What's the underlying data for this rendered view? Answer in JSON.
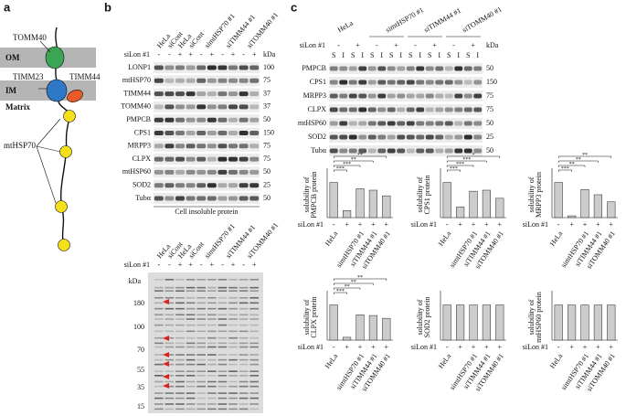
{
  "panels": {
    "a": "a",
    "b": "b",
    "c": "c"
  },
  "a": {
    "tomm40": "TOMM40",
    "om": "OM",
    "timm23": "TIMM23",
    "timm44": "TIMM44",
    "im": "IM",
    "matrix": "Matrix",
    "mthsp70": "mtHSP70"
  },
  "b": {
    "lanes": [
      "HeLa",
      "siCont",
      "HeLa",
      "siCont",
      "simtHSP70 #1",
      "siTIMM44 #1",
      "siTOMM40 #1"
    ],
    "lon_label": "siLon #1",
    "lon": [
      "-",
      "-",
      "+",
      "+",
      "-",
      "+",
      "-",
      "+",
      "-",
      "+"
    ],
    "kda": "kDa",
    "rows": [
      {
        "name": "LONP1",
        "kda": "100"
      },
      {
        "name": "mtHSP70",
        "kda": "75"
      },
      {
        "name": "TIMM44",
        "kda": "37"
      },
      {
        "name": "TOMM40",
        "kda": "37"
      },
      {
        "name": "PMPCB",
        "kda": "50"
      },
      {
        "name": "CPS1",
        "kda": "150"
      },
      {
        "name": "MRPP3",
        "kda": "75"
      },
      {
        "name": "CLPX",
        "kda": "75"
      },
      {
        "name": "mtHSP60",
        "kda": "50"
      },
      {
        "name": "SOD2",
        "kda": "25"
      },
      {
        "name": "Tubα",
        "kda": "50"
      }
    ],
    "caption": "Cell insoluble protein",
    "gel": {
      "lanes": [
        "HeLa",
        "siCont",
        "HeLa",
        "siCont",
        "simtHSP70 #1",
        "siTIMM44 #1",
        "siTOMM40 #1"
      ],
      "lon_label": "siLon #1",
      "lon": [
        "-",
        "-",
        "+",
        "+",
        "-",
        "+",
        "-",
        "+",
        "-",
        "+"
      ],
      "kda": "kDa",
      "markers": [
        "180",
        "100",
        "70",
        "55",
        "35",
        "15"
      ]
    }
  },
  "c": {
    "lanes": [
      "HeLa",
      "simtHSP70 #1",
      "siTIMM44 #1",
      "siTOMM40 #1"
    ],
    "lon_label": "siLon #1",
    "lon": [
      "-",
      "+",
      "-",
      "+",
      "-",
      "+",
      "-",
      "+"
    ],
    "fractions": [
      "S",
      "I"
    ],
    "kda": "kDa",
    "rows": [
      {
        "name": "PMPCB",
        "kda": "50"
      },
      {
        "name": "CPS1",
        "kda": "150"
      },
      {
        "name": "MRPP3",
        "kda": "75"
      },
      {
        "name": "CLPX",
        "kda": "75"
      },
      {
        "name": "mtHSP60",
        "kda": "50"
      },
      {
        "name": "SOD2",
        "kda": "25"
      },
      {
        "name": "Tubα",
        "kda": "50"
      }
    ]
  },
  "chart_data": [
    {
      "type": "bar",
      "ylabel": [
        "solubility of",
        "PMPCB protein"
      ],
      "categories": [
        "HeLa",
        null,
        "simtHSP70 #1",
        "siTIMM44 #1",
        "siTOMM40 #1"
      ],
      "lon_label": "siLon #1",
      "lon": [
        "-",
        "+",
        "+",
        "+",
        "+"
      ],
      "values": [
        1.0,
        0.2,
        0.82,
        0.78,
        0.62
      ],
      "color": "#cccccc",
      "ylim": [
        0,
        1.3
      ],
      "annotations": [
        "***",
        "***",
        "**",
        "**"
      ]
    },
    {
      "type": "bar",
      "ylabel": [
        "solubility of",
        "CPS1 protein"
      ],
      "categories": [
        "HeLa",
        null,
        "simtHSP70 #1",
        "siTIMM44 #1",
        "siTOMM40 #1"
      ],
      "lon_label": "siLon #1",
      "lon": [
        "-",
        "+",
        "+",
        "+",
        "+"
      ],
      "values": [
        1.0,
        0.3,
        0.75,
        0.78,
        0.55
      ],
      "color": "#cccccc",
      "ylim": [
        0,
        1.3
      ],
      "annotations": [
        "***",
        "***",
        "***",
        "*"
      ]
    },
    {
      "type": "bar",
      "ylabel": [
        "solubility of",
        "MRPP3 protein"
      ],
      "categories": [
        "HeLa",
        null,
        "simtHSP70 #1",
        "siTIMM44 #1",
        "siTOMM40 #1"
      ],
      "lon_label": "siLon #1",
      "lon": [
        "-",
        "+",
        "+",
        "+",
        "+"
      ],
      "values": [
        1.0,
        0.05,
        0.8,
        0.65,
        0.45
      ],
      "color": "#cccccc",
      "ylim": [
        0,
        1.3
      ],
      "annotations": [
        "***",
        "**",
        "**",
        "**"
      ]
    },
    {
      "type": "bar",
      "ylabel": [
        "solubility of",
        "CLPX protein"
      ],
      "categories": [
        "HeLa",
        null,
        "simtHSP70 #1",
        "siTIMM44 #1",
        "siTOMM40 #1"
      ],
      "lon_label": "siLon #1",
      "lon": [
        "-",
        "+",
        "+",
        "+",
        "+"
      ],
      "values": [
        1.0,
        0.08,
        0.72,
        0.7,
        0.62
      ],
      "color": "#cccccc",
      "ylim": [
        0,
        1.3
      ],
      "annotations": [
        "***",
        "**",
        "**",
        "**"
      ]
    },
    {
      "type": "bar",
      "ylabel": [
        "solubility of",
        "SOD2 protein"
      ],
      "categories": [
        "HeLa",
        null,
        "simtHSP70 #1",
        "siTIMM44 #1",
        "siTOMM40 #1"
      ],
      "lon_label": "siLon #1",
      "lon": [
        "-",
        "+",
        "+",
        "+",
        "+"
      ],
      "values": [
        1.0,
        1.0,
        1.0,
        1.0,
        1.0
      ],
      "color": "#cccccc",
      "ylim": [
        0,
        1.3
      ],
      "annotations": []
    },
    {
      "type": "bar",
      "ylabel": [
        "solubility of",
        "mtHSP60 protein"
      ],
      "categories": [
        "HeLa",
        null,
        "simtHSP70 #1",
        "siTIMM44 #1",
        "siTOMM40 #1"
      ],
      "lon_label": "siLon #1",
      "lon": [
        "-",
        "+",
        "+",
        "+",
        "+"
      ],
      "values": [
        1.0,
        1.0,
        1.0,
        1.0,
        1.0
      ],
      "color": "#cccccc",
      "ylim": [
        0,
        1.3
      ],
      "annotations": []
    }
  ]
}
